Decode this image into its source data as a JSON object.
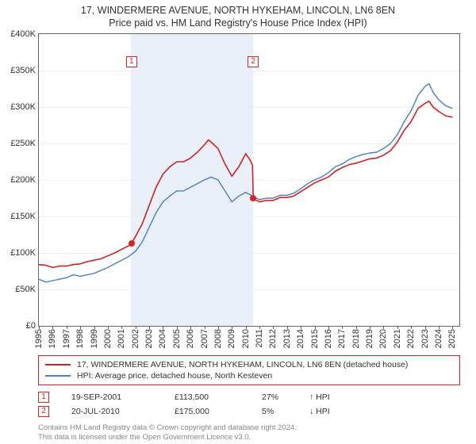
{
  "title_line1": "17, WINDERMERE AVENUE, NORTH HYKEHAM, LINCOLN, LN6 8EN",
  "title_line2": "Price paid vs. HM Land Registry's House Price Index (HPI)",
  "chart": {
    "type": "line",
    "background_color": "#ffffff",
    "grid_color": "#eeeeee",
    "border_color": "#666666",
    "shade_color": "#eaf0fa",
    "xlim": [
      1995,
      2025.5
    ],
    "ylim": [
      0,
      400000
    ],
    "ytick_step": 50000,
    "ytick_labels": [
      "£0",
      "£50K",
      "£100K",
      "£150K",
      "£200K",
      "£250K",
      "£300K",
      "£350K",
      "£400K"
    ],
    "xticks": [
      1995,
      1996,
      1997,
      1998,
      1999,
      2000,
      2001,
      2002,
      2003,
      2004,
      2005,
      2006,
      2007,
      2008,
      2009,
      2010,
      2011,
      2012,
      2013,
      2014,
      2015,
      2016,
      2017,
      2018,
      2019,
      2020,
      2021,
      2022,
      2023,
      2024,
      2025
    ],
    "shade_start": 2001.7,
    "shade_end": 2010.55,
    "series": [
      {
        "name": "property",
        "label": "17, WINDERMERE AVENUE, NORTH HYKEHAM, LINCOLN, LN6 8EN (detached house)",
        "color": "#d22222",
        "line_width": 1.6,
        "data": [
          [
            1995,
            84000
          ],
          [
            1995.5,
            83000
          ],
          [
            1996,
            80000
          ],
          [
            1996.5,
            82000
          ],
          [
            1997,
            82000
          ],
          [
            1997.5,
            84000
          ],
          [
            1998,
            85000
          ],
          [
            1998.5,
            88000
          ],
          [
            1999,
            90000
          ],
          [
            1999.5,
            92000
          ],
          [
            2000,
            96000
          ],
          [
            2000.5,
            100000
          ],
          [
            2001,
            105000
          ],
          [
            2001.55,
            110000
          ],
          [
            2001.72,
            113500
          ],
          [
            2002,
            122000
          ],
          [
            2002.5,
            140000
          ],
          [
            2003,
            165000
          ],
          [
            2003.5,
            190000
          ],
          [
            2004,
            208000
          ],
          [
            2004.5,
            218000
          ],
          [
            2005,
            225000
          ],
          [
            2005.5,
            225000
          ],
          [
            2006,
            230000
          ],
          [
            2006.5,
            238000
          ],
          [
            2007,
            248000
          ],
          [
            2007.3,
            255000
          ],
          [
            2007.6,
            250000
          ],
          [
            2008,
            243000
          ],
          [
            2008.5,
            222000
          ],
          [
            2008.8,
            212000
          ],
          [
            2009,
            205000
          ],
          [
            2009.5,
            218000
          ],
          [
            2010,
            236000
          ],
          [
            2010.3,
            228000
          ],
          [
            2010.5,
            220000
          ],
          [
            2010.55,
            175000
          ],
          [
            2010.7,
            173000
          ],
          [
            2011,
            170000
          ],
          [
            2011.5,
            172000
          ],
          [
            2012,
            172000
          ],
          [
            2012.5,
            176000
          ],
          [
            2013,
            176000
          ],
          [
            2013.5,
            178000
          ],
          [
            2014,
            184000
          ],
          [
            2014.5,
            190000
          ],
          [
            2015,
            196000
          ],
          [
            2015.5,
            200000
          ],
          [
            2016,
            204000
          ],
          [
            2016.5,
            212000
          ],
          [
            2017,
            217000
          ],
          [
            2017.5,
            221000
          ],
          [
            2018,
            223000
          ],
          [
            2018.5,
            226000
          ],
          [
            2019,
            229000
          ],
          [
            2019.5,
            230000
          ],
          [
            2020,
            234000
          ],
          [
            2020.5,
            240000
          ],
          [
            2021,
            252000
          ],
          [
            2021.5,
            268000
          ],
          [
            2022,
            280000
          ],
          [
            2022.5,
            298000
          ],
          [
            2023,
            305000
          ],
          [
            2023.3,
            308000
          ],
          [
            2023.6,
            300000
          ],
          [
            2024,
            294000
          ],
          [
            2024.5,
            288000
          ],
          [
            2025,
            286000
          ]
        ]
      },
      {
        "name": "hpi",
        "label": "HPI: Average price, detached house, North Kesteven",
        "color": "#4a7fc7",
        "line_width": 1.4,
        "data": [
          [
            1995,
            64000
          ],
          [
            1995.5,
            60000
          ],
          [
            1996,
            62000
          ],
          [
            1996.5,
            64000
          ],
          [
            1997,
            66000
          ],
          [
            1997.5,
            70000
          ],
          [
            1998,
            68000
          ],
          [
            1998.5,
            70000
          ],
          [
            1999,
            72000
          ],
          [
            1999.5,
            76000
          ],
          [
            2000,
            80000
          ],
          [
            2000.5,
            85000
          ],
          [
            2001,
            90000
          ],
          [
            2001.5,
            95000
          ],
          [
            2002,
            102000
          ],
          [
            2002.5,
            115000
          ],
          [
            2003,
            135000
          ],
          [
            2003.5,
            155000
          ],
          [
            2004,
            170000
          ],
          [
            2004.5,
            178000
          ],
          [
            2005,
            185000
          ],
          [
            2005.5,
            185000
          ],
          [
            2006,
            190000
          ],
          [
            2006.5,
            195000
          ],
          [
            2007,
            200000
          ],
          [
            2007.5,
            204000
          ],
          [
            2008,
            200000
          ],
          [
            2008.5,
            185000
          ],
          [
            2009,
            170000
          ],
          [
            2009.5,
            178000
          ],
          [
            2010,
            183000
          ],
          [
            2010.5,
            178000
          ],
          [
            2011,
            173000
          ],
          [
            2011.5,
            175000
          ],
          [
            2012,
            175000
          ],
          [
            2012.5,
            179000
          ],
          [
            2013,
            179000
          ],
          [
            2013.5,
            182000
          ],
          [
            2014,
            188000
          ],
          [
            2014.5,
            195000
          ],
          [
            2015,
            200000
          ],
          [
            2015.5,
            204000
          ],
          [
            2016,
            210000
          ],
          [
            2016.5,
            218000
          ],
          [
            2017,
            222000
          ],
          [
            2017.5,
            228000
          ],
          [
            2018,
            232000
          ],
          [
            2018.5,
            235000
          ],
          [
            2019,
            237000
          ],
          [
            2019.5,
            238000
          ],
          [
            2020,
            243000
          ],
          [
            2020.5,
            250000
          ],
          [
            2021,
            262000
          ],
          [
            2021.5,
            280000
          ],
          [
            2022,
            295000
          ],
          [
            2022.5,
            316000
          ],
          [
            2023,
            328000
          ],
          [
            2023.3,
            332000
          ],
          [
            2023.6,
            320000
          ],
          [
            2024,
            310000
          ],
          [
            2024.5,
            302000
          ],
          [
            2025,
            298000
          ]
        ]
      }
    ],
    "sale_markers": [
      {
        "n": "1",
        "x": 2001.72,
        "y": 113500,
        "label_top_offset": 28
      },
      {
        "n": "2",
        "x": 2010.55,
        "y": 175000,
        "label_top_offset": 28
      }
    ]
  },
  "legend": {
    "border_color": "#d22222"
  },
  "sales": [
    {
      "n": "1",
      "date": "19-SEP-2001",
      "price": "£113,500",
      "pct": "27%",
      "arrow": "↑ HPI"
    },
    {
      "n": "2",
      "date": "20-JUL-2010",
      "price": "£175,000",
      "pct": "5%",
      "arrow": "↓ HPI"
    }
  ],
  "footer_line1": "Contains HM Land Registry data © Crown copyright and database right 2024.",
  "footer_line2": "This data is licensed under the Open Government Licence v3.0."
}
